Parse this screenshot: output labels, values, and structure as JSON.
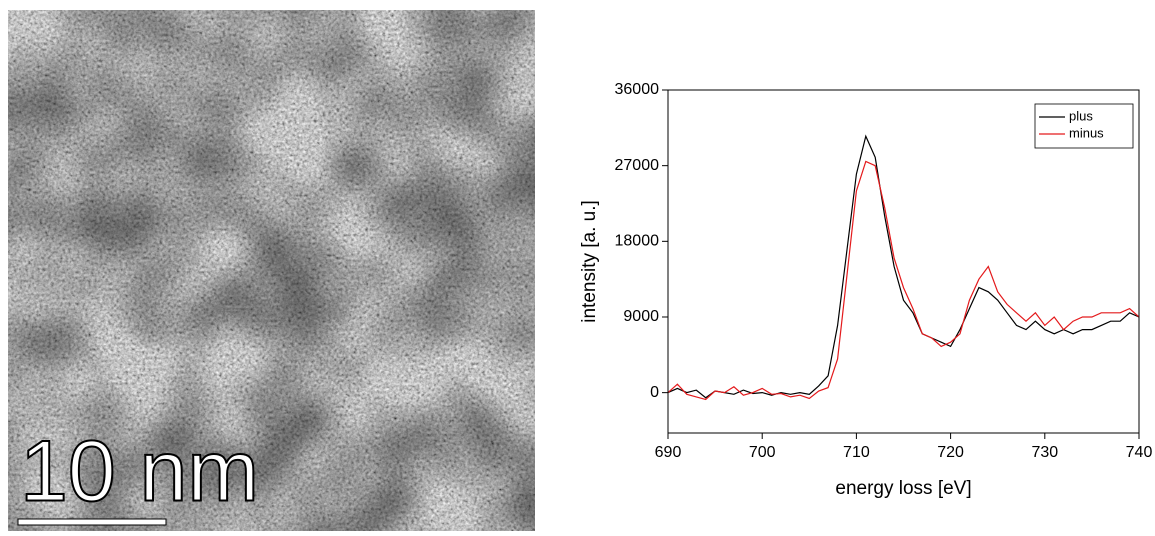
{
  "micrograph": {
    "scale_label": "10 nm"
  },
  "chart_data": {
    "type": "line",
    "x_label": "energy loss [eV]",
    "y_label": "intensity [a. u.]",
    "x": [
      690,
      691,
      692,
      693,
      694,
      695,
      696,
      697,
      698,
      699,
      700,
      701,
      702,
      703,
      704,
      705,
      706,
      707,
      708,
      709,
      710,
      711,
      712,
      713,
      714,
      715,
      716,
      717,
      718,
      719,
      720,
      721,
      722,
      723,
      724,
      725,
      726,
      727,
      728,
      729,
      730,
      731,
      732,
      733,
      734,
      735,
      736,
      737,
      738,
      739,
      740
    ],
    "series": [
      {
        "name": "plus",
        "color": "#000000",
        "values": [
          0,
          500,
          0,
          300,
          -600,
          200,
          0,
          -200,
          300,
          -100,
          0,
          -300,
          0,
          -200,
          0,
          -200,
          800,
          2000,
          8000,
          17000,
          26000,
          30500,
          28000,
          21000,
          15000,
          11000,
          9500,
          7000,
          6500,
          6000,
          5500,
          7500,
          10000,
          12500,
          12000,
          11000,
          9500,
          8000,
          7500,
          8500,
          7500,
          7000,
          7500,
          7000,
          7500,
          7500,
          8000,
          8500,
          8500,
          9500,
          9000
        ]
      },
      {
        "name": "minus",
        "color": "#e41a1c",
        "values": [
          0,
          1000,
          -200,
          -500,
          -800,
          200,
          0,
          700,
          -300,
          0,
          500,
          -200,
          -100,
          -500,
          -300,
          -700,
          200,
          600,
          4000,
          14000,
          24000,
          27500,
          27000,
          22000,
          16000,
          12500,
          10000,
          7000,
          6500,
          5500,
          6000,
          7000,
          11000,
          13500,
          15000,
          12000,
          10500,
          9500,
          8500,
          9500,
          8000,
          9000,
          7500,
          8500,
          9000,
          9000,
          9500,
          9500,
          9500,
          10000,
          9000
        ]
      }
    ],
    "xlim": [
      690,
      740
    ],
    "ylim": [
      -4800,
      36000
    ],
    "xticks": [
      690,
      700,
      710,
      720,
      730,
      740
    ],
    "yticks": [
      0,
      9000,
      18000,
      27000,
      36000
    ],
    "legend": "top-right"
  }
}
